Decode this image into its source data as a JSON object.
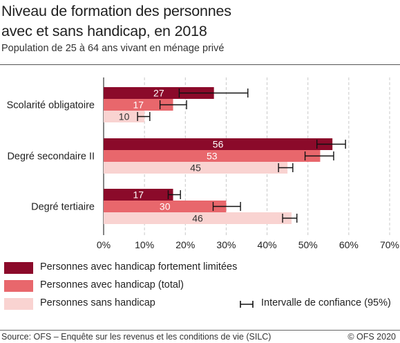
{
  "header": {
    "title_line1": "Niveau de formation des personnes",
    "title_line2": "avec et sans handicap, en 2018",
    "subtitle": "Population de 25 à 64 ans vivant en ménage privé"
  },
  "footer": {
    "source": "Source: OFS –  Enquête sur les revenus et les conditions de vie (SILC)",
    "copyright": "© OFS 2020"
  },
  "legend": {
    "series": [
      {
        "label": "Personnes avec handicap fortement limitées",
        "color": "#8b0a2a"
      },
      {
        "label": "Personnes avec handicap (total)",
        "color": "#e8676c"
      },
      {
        "label": "Personnes sans handicap",
        "color": "#f9d3d1"
      }
    ],
    "ci_label": "Intervalle de confiance (95%)"
  },
  "chart_data": {
    "type": "bar",
    "orientation": "horizontal",
    "title": "Niveau de formation des personnes avec et sans handicap, en 2018",
    "subtitle": "Population de 25 à 64 ans vivant en ménage privé",
    "categories": [
      "Scolarité obligatoire",
      "Degré secondaire II",
      "Degré tertiaire"
    ],
    "series": [
      {
        "name": "Personnes avec handicap fortement limitées",
        "color": "#8b0a2a",
        "values": [
          27,
          56,
          17
        ],
        "labels": [
          "27",
          "56",
          "17"
        ],
        "ci_low": [
          18.5,
          52.2,
          15.8
        ],
        "ci_high": [
          35.3,
          59.2,
          18.8
        ]
      },
      {
        "name": "Personnes avec handicap (total)",
        "color": "#e8676c",
        "values": [
          17,
          53,
          30
        ],
        "labels": [
          "17",
          "53",
          "30"
        ],
        "ci_low": [
          13.8,
          49.3,
          26.8
        ],
        "ci_high": [
          20.3,
          56.3,
          33.5
        ]
      },
      {
        "name": "Personnes sans handicap",
        "color": "#f9d3d1",
        "values": [
          10,
          45,
          46
        ],
        "labels": [
          "10",
          "45",
          "46"
        ],
        "ci_low": [
          8.3,
          42.8,
          43.8
        ],
        "ci_high": [
          11.3,
          46.3,
          47.3
        ]
      }
    ],
    "xlim": [
      0,
      70
    ],
    "xticks": [
      "0%",
      "10%",
      "20%",
      "30%",
      "40%",
      "50%",
      "60%",
      "70%"
    ],
    "grid": true,
    "legend_position": "bottom"
  }
}
